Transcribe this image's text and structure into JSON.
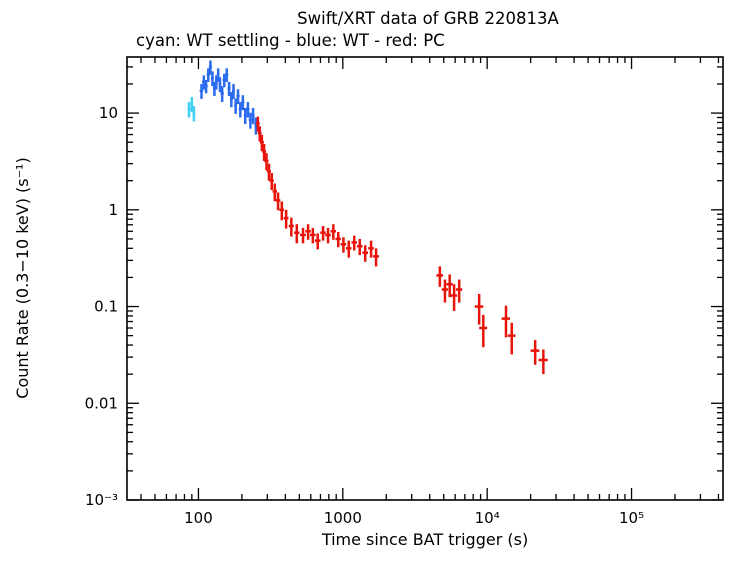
{
  "chart_data": {
    "type": "scatter",
    "title": "Swift/XRT data of GRB 220813A",
    "subtitle": "cyan: WT settling - blue: WT - red: PC",
    "xlabel": "Time since BAT trigger (s)",
    "ylabel": "Count Rate (0.3−10 keV) (s⁻¹)",
    "xscale": "log",
    "yscale": "log",
    "xlim": [
      32,
      430000
    ],
    "ylim": [
      0.001,
      38
    ],
    "grid": false,
    "legend_position": "subtitle-text",
    "x_ticks": [
      100,
      1000,
      10000,
      100000
    ],
    "x_tick_labels": [
      "100",
      "1000",
      "10⁴",
      "10⁵"
    ],
    "y_ticks": [
      0.001,
      0.01,
      0.1,
      1,
      10
    ],
    "y_tick_labels": [
      "10⁻³",
      "0.01",
      "0.1",
      "1",
      "10"
    ],
    "point_format": [
      "time_s",
      "time_err_s",
      "rate_cps",
      "rate_err_cps"
    ],
    "series": [
      {
        "name": "WT settling",
        "color": "#3fd2f2",
        "points": [
          [
            86,
            2,
            11.0,
            2.0
          ],
          [
            90,
            2,
            12.5,
            2.2
          ],
          [
            93,
            2,
            10.0,
            1.8
          ]
        ]
      },
      {
        "name": "WT",
        "color": "#2b6bee",
        "points": [
          [
            105,
            3,
            17,
            3.0
          ],
          [
            109,
            3,
            21,
            3.5
          ],
          [
            113,
            3,
            19,
            3.0
          ],
          [
            117,
            3,
            25,
            4.0
          ],
          [
            121,
            3,
            30,
            5.0
          ],
          [
            125,
            3,
            23,
            4.0
          ],
          [
            129,
            3,
            18,
            3.0
          ],
          [
            133,
            3,
            21,
            3.5
          ],
          [
            137,
            3,
            25,
            4.0
          ],
          [
            141,
            3,
            20,
            3.5
          ],
          [
            146,
            4,
            16,
            3.0
          ],
          [
            151,
            4,
            22,
            3.5
          ],
          [
            157,
            4,
            25,
            4.0
          ],
          [
            163,
            4,
            18,
            3.0
          ],
          [
            169,
            4,
            14,
            2.5
          ],
          [
            175,
            4,
            17,
            3.0
          ],
          [
            181,
            4,
            12,
            2.2
          ],
          [
            188,
            5,
            15,
            2.6
          ],
          [
            195,
            5,
            11,
            2.0
          ],
          [
            203,
            5,
            13,
            2.3
          ],
          [
            211,
            5,
            9.5,
            1.8
          ],
          [
            220,
            6,
            11,
            2.0
          ],
          [
            229,
            6,
            8.5,
            1.6
          ],
          [
            239,
            6,
            9.5,
            1.8
          ],
          [
            250,
            6,
            7.5,
            1.5
          ]
        ]
      },
      {
        "name": "PC",
        "color": "#e81309",
        "points": [
          [
            258,
            8,
            7.8,
            1.4
          ],
          [
            266,
            8,
            6.2,
            1.1
          ],
          [
            275,
            9,
            5.0,
            0.95
          ],
          [
            285,
            9,
            4.0,
            0.8
          ],
          [
            296,
            10,
            3.2,
            0.65
          ],
          [
            308,
            10,
            2.5,
            0.5
          ],
          [
            322,
            11,
            2.0,
            0.4
          ],
          [
            338,
            12,
            1.55,
            0.32
          ],
          [
            356,
            13,
            1.25,
            0.26
          ],
          [
            378,
            14,
            1.0,
            0.22
          ],
          [
            405,
            15,
            0.82,
            0.18
          ],
          [
            440,
            18,
            0.68,
            0.15
          ],
          [
            480,
            20,
            0.58,
            0.13
          ],
          [
            530,
            25,
            0.55,
            0.1
          ],
          [
            575,
            25,
            0.6,
            0.11
          ],
          [
            620,
            28,
            0.55,
            0.1
          ],
          [
            670,
            30,
            0.48,
            0.09
          ],
          [
            730,
            32,
            0.58,
            0.1
          ],
          [
            790,
            35,
            0.55,
            0.1
          ],
          [
            860,
            38,
            0.6,
            0.11
          ],
          [
            930,
            40,
            0.5,
            0.09
          ],
          [
            1010,
            45,
            0.44,
            0.08
          ],
          [
            1100,
            48,
            0.4,
            0.08
          ],
          [
            1200,
            52,
            0.46,
            0.08
          ],
          [
            1310,
            58,
            0.42,
            0.08
          ],
          [
            1430,
            65,
            0.36,
            0.07
          ],
          [
            1570,
            70,
            0.4,
            0.08
          ],
          [
            1700,
            80,
            0.33,
            0.07
          ],
          [
            4700,
            250,
            0.21,
            0.05
          ],
          [
            5100,
            250,
            0.15,
            0.04
          ],
          [
            5500,
            280,
            0.17,
            0.045
          ],
          [
            5900,
            300,
            0.13,
            0.04
          ],
          [
            6400,
            320,
            0.15,
            0.04
          ],
          [
            8800,
            600,
            0.1,
            0.035
          ],
          [
            9400,
            600,
            0.06,
            0.022
          ],
          [
            13500,
            900,
            0.075,
            0.027
          ],
          [
            14800,
            900,
            0.05,
            0.018
          ],
          [
            21500,
            1500,
            0.035,
            0.01
          ],
          [
            24500,
            1800,
            0.028,
            0.008
          ]
        ]
      }
    ]
  }
}
